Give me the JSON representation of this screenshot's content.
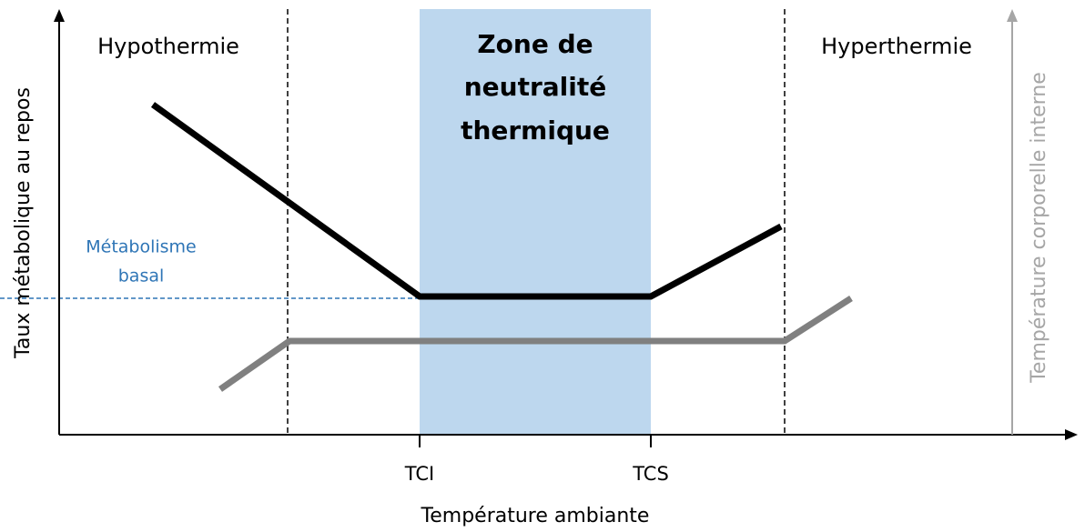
{
  "labels": {
    "hypothermia": "Hypothermie",
    "hyperthermia": "Hyperthermie",
    "zone": [
      "Zone de",
      "neutralité",
      "thermique"
    ],
    "basal": [
      "Métabolisme",
      "basal"
    ],
    "y_axis": "Taux métabolique au repos",
    "y2_axis": "Température corporelle interne",
    "tci": "TCI",
    "tcs": "TCS",
    "x_axis": "Température ambiante"
  }
}
